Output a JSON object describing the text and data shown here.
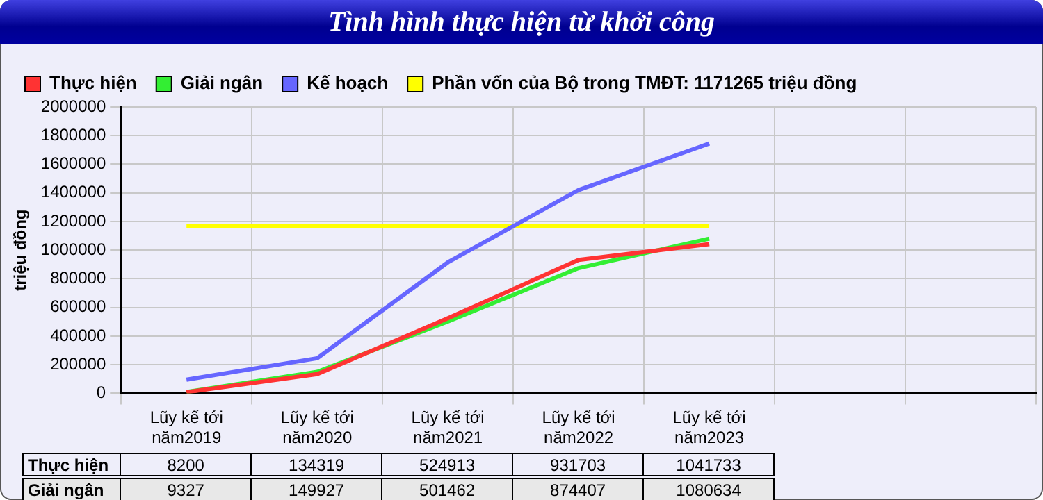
{
  "chart_data": {
    "type": "line",
    "title": "Tình hình thực hiện từ khởi công",
    "ylabel": "triệu đồng",
    "categories": [
      "Lũy kế tới năm2019",
      "Lũy kế tới năm2020",
      "Lũy kế tới năm2021",
      "Lũy kế tới năm2022",
      "Lũy kế tới năm2023",
      null,
      null
    ],
    "series": [
      {
        "name": "Thực hiện",
        "color": "#ff3333",
        "values": [
          8200,
          134319,
          524913,
          931703,
          1041733,
          null,
          null
        ],
        "value_labels": [
          "8200",
          "134319",
          "524913",
          "931703",
          "1041733",
          null,
          null
        ]
      },
      {
        "name": "Giải ngân",
        "color": "#33ee33",
        "values": [
          9327,
          149927,
          501462,
          874407,
          1080634,
          null,
          null
        ],
        "value_labels": [
          "9327",
          "149927",
          "501462",
          "874407",
          "1080634",
          null,
          null
        ]
      },
      {
        "name": "Kế hoạch",
        "color": "#6666ff",
        "values": [
          95000,
          245000,
          915000,
          1420000,
          1745000,
          null,
          null
        ]
      },
      {
        "name": "Phần vốn của Bộ trong TMĐT: 1171265 triệu đồng",
        "color": "#ffff00",
        "values": [
          1171265,
          1171265,
          1171265,
          1171265,
          1171265,
          null,
          null
        ]
      }
    ],
    "ylim": [
      0,
      2000000
    ],
    "yticks": [
      0,
      200000,
      400000,
      600000,
      800000,
      1000000,
      1200000,
      1400000,
      1600000,
      1800000,
      2000000
    ],
    "grid": true,
    "legend": "top left",
    "marker": "none",
    "line_style": "solid"
  }
}
